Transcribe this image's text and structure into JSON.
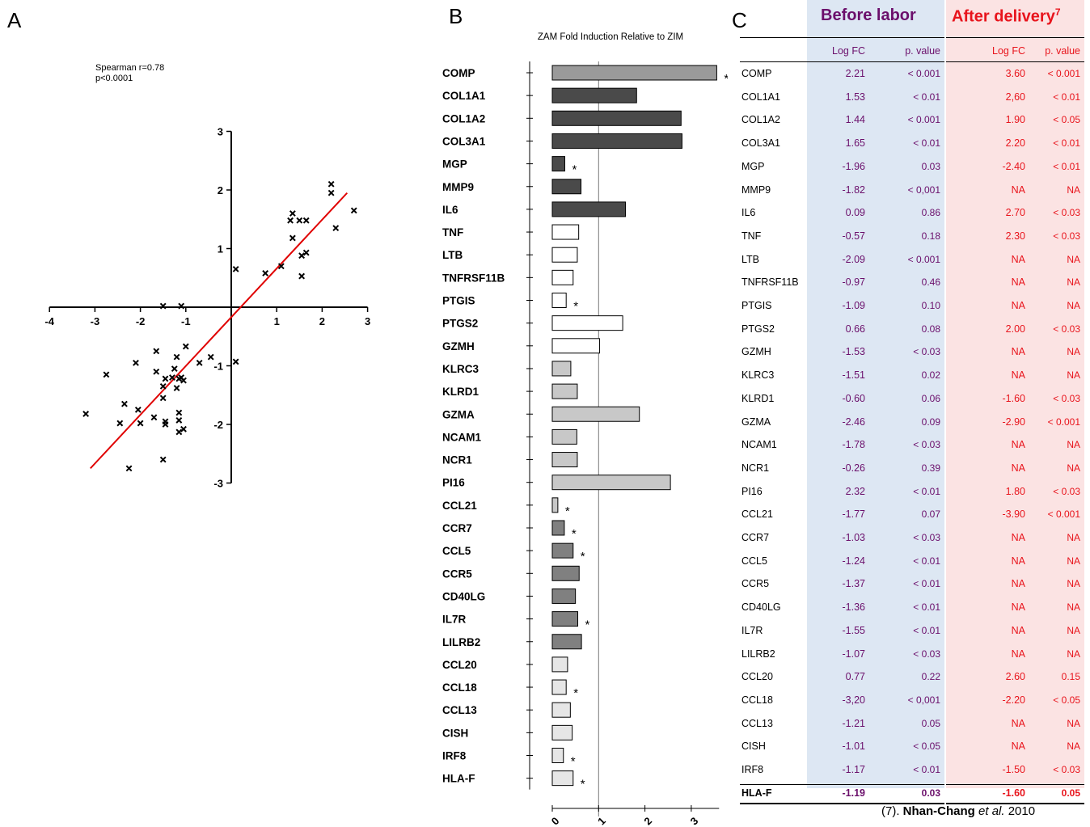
{
  "panels": {
    "a": "A",
    "b": "B",
    "c": "C"
  },
  "colors": {
    "before_text": "#6b0f6b",
    "after_text": "#e8141c",
    "before_band": "#dde7f3",
    "after_band": "#fbe3e3",
    "fit_line": "#e00000",
    "bar_dark": "#4a4a4a",
    "bar_mid": "#808080",
    "bar_light": "#c8c8c8",
    "bar_vlight": "#e6e6e6",
    "bar_white": "#ffffff",
    "bar_top": "#9a9a9a"
  },
  "chart_data": [
    {
      "type": "scatter",
      "annotation": [
        "Spearman r=0.78",
        "p<0.0001"
      ],
      "xlim": [
        -4,
        3
      ],
      "ylim": [
        -3,
        3
      ],
      "xticks": [
        "-4",
        "-3",
        "-2",
        "-1",
        "1",
        "2",
        "3"
      ],
      "yticks": [
        "3",
        "2",
        "1",
        "-1",
        "-2",
        "-3"
      ],
      "marker": "x",
      "points": [
        [
          0.1,
          0.65
        ],
        [
          0.75,
          0.58
        ],
        [
          1.1,
          0.7
        ],
        [
          1.35,
          1.6
        ],
        [
          1.3,
          1.48
        ],
        [
          1.5,
          1.48
        ],
        [
          1.65,
          1.48
        ],
        [
          1.35,
          1.18
        ],
        [
          1.55,
          0.88
        ],
        [
          1.65,
          0.93
        ],
        [
          1.55,
          0.53
        ],
        [
          2.2,
          2.1
        ],
        [
          2.2,
          1.95
        ],
        [
          2.7,
          1.65
        ],
        [
          2.3,
          1.35
        ],
        [
          -1.5,
          0.02
        ],
        [
          -1.1,
          0.02
        ],
        [
          0.1,
          -0.93
        ],
        [
          -0.45,
          -0.85
        ],
        [
          -0.7,
          -0.95
        ],
        [
          -1.0,
          -0.67
        ],
        [
          -1.2,
          -0.85
        ],
        [
          -1.25,
          -1.05
        ],
        [
          -1.65,
          -0.75
        ],
        [
          -1.65,
          -1.1
        ],
        [
          -1.45,
          -1.22
        ],
        [
          -1.1,
          -1.2
        ],
        [
          -1.05,
          -1.25
        ],
        [
          -1.15,
          -1.22
        ],
        [
          -1.3,
          -1.2
        ],
        [
          -1.5,
          -1.35
        ],
        [
          -1.2,
          -1.38
        ],
        [
          -1.5,
          -1.55
        ],
        [
          -2.1,
          -0.95
        ],
        [
          -2.75,
          -1.15
        ],
        [
          -2.35,
          -1.65
        ],
        [
          -2.05,
          -1.75
        ],
        [
          -1.7,
          -1.88
        ],
        [
          -1.45,
          -1.95
        ],
        [
          -1.45,
          -2.0
        ],
        [
          -1.15,
          -1.8
        ],
        [
          -1.15,
          -1.93
        ],
        [
          -2.0,
          -1.98
        ],
        [
          -2.45,
          -1.98
        ],
        [
          -3.2,
          -1.82
        ],
        [
          -1.05,
          -2.08
        ],
        [
          -1.15,
          -2.13
        ],
        [
          -1.5,
          -2.6
        ],
        [
          -2.25,
          -2.75
        ]
      ],
      "fit_line": [
        [
          -3.1,
          -2.75
        ],
        [
          2.55,
          1.95
        ]
      ]
    },
    {
      "type": "bar",
      "orientation": "horizontal",
      "title": "ZAM Fold Induction Relative to ZIM",
      "xticks": [
        "0",
        "1",
        "2",
        "3"
      ],
      "xlim": [
        0,
        3.6
      ],
      "reference_line": 1,
      "categories": [
        "COMP",
        "COL1A1",
        "COL1A2",
        "COL3A1",
        "MGP",
        "MMP9",
        "IL6",
        "TNF",
        "LTB",
        "TNFRSF11B",
        "PTGIS",
        "PTGS2",
        "GZMH",
        "KLRC3",
        "KLRD1",
        "GZMA",
        "NCAM1",
        "NCR1",
        "PI16",
        "CCL21",
        "CCR7",
        "CCL5",
        "CCR5",
        "CD40LG",
        "IL7R",
        "LILRB2",
        "CCL20",
        "CCL18",
        "CCL13",
        "CISH",
        "IRF8",
        "HLA-F"
      ],
      "values": [
        3.55,
        1.82,
        2.78,
        2.8,
        0.27,
        0.62,
        1.58,
        0.57,
        0.54,
        0.45,
        0.3,
        1.52,
        1.02,
        0.4,
        0.54,
        1.88,
        0.53,
        0.54,
        2.55,
        0.12,
        0.26,
        0.45,
        0.58,
        0.5,
        0.55,
        0.63,
        0.33,
        0.3,
        0.39,
        0.43,
        0.24,
        0.45
      ],
      "color_group": [
        "top",
        "dark",
        "dark",
        "dark",
        "dark",
        "dark",
        "dark",
        "white",
        "white",
        "white",
        "white",
        "white",
        "white",
        "light",
        "light",
        "light",
        "light",
        "light",
        "light",
        "light",
        "mid",
        "mid",
        "mid",
        "mid",
        "mid",
        "mid",
        "vlight",
        "vlight",
        "vlight",
        "vlight",
        "vlight",
        "vlight"
      ],
      "significant": [
        true,
        false,
        false,
        false,
        true,
        false,
        false,
        false,
        false,
        false,
        true,
        false,
        false,
        false,
        false,
        false,
        false,
        false,
        false,
        true,
        true,
        true,
        false,
        false,
        true,
        false,
        false,
        true,
        false,
        false,
        true,
        true
      ],
      "star": "*"
    },
    {
      "type": "table",
      "group_headers": [
        "Before labor",
        "After delivery"
      ],
      "after_superscript": "7",
      "columns": [
        "Log FC",
        "p. value",
        "Log FC",
        "p. value"
      ],
      "rows": [
        [
          "COMP",
          "2.21",
          "< 0.001",
          "3.60",
          "< 0.001"
        ],
        [
          "COL1A1",
          "1.53",
          "< 0.01",
          "2,60",
          "< 0.01"
        ],
        [
          "COL1A2",
          "1.44",
          "< 0.001",
          "1.90",
          "< 0.05"
        ],
        [
          "COL3A1",
          "1.65",
          "< 0.01",
          "2.20",
          "< 0.01"
        ],
        [
          "MGP",
          "-1.96",
          "0.03",
          "-2.40",
          "< 0.01"
        ],
        [
          "MMP9",
          "-1.82",
          "< 0,001",
          "NA",
          "NA"
        ],
        [
          "IL6",
          "0.09",
          "0.86",
          "2.70",
          "< 0.03"
        ],
        [
          "TNF",
          "-0.57",
          "0.18",
          "2.30",
          "< 0.03"
        ],
        [
          "LTB",
          "-2.09",
          "< 0.001",
          "NA",
          "NA"
        ],
        [
          "TNFRSF11B",
          "-0.97",
          "0.46",
          "NA",
          "NA"
        ],
        [
          "PTGIS",
          "-1.09",
          "0.10",
          "NA",
          "NA"
        ],
        [
          "PTGS2",
          "0.66",
          "0.08",
          "2.00",
          "< 0.03"
        ],
        [
          "GZMH",
          "-1.53",
          "< 0.03",
          "NA",
          "NA"
        ],
        [
          "KLRC3",
          "-1.51",
          "0.02",
          "NA",
          "NA"
        ],
        [
          "KLRD1",
          "-0.60",
          "0.06",
          "-1.60",
          "< 0.03"
        ],
        [
          "GZMA",
          "-2.46",
          "0.09",
          "-2.90",
          "< 0.001"
        ],
        [
          "NCAM1",
          "-1.78",
          "< 0.03",
          "NA",
          "NA"
        ],
        [
          "NCR1",
          "-0.26",
          "0.39",
          "NA",
          "NA"
        ],
        [
          "PI16",
          "2.32",
          "< 0.01",
          "1.80",
          "< 0.03"
        ],
        [
          "CCL21",
          "-1.77",
          "0.07",
          "-3.90",
          "< 0.001"
        ],
        [
          "CCR7",
          "-1.03",
          "< 0.03",
          "NA",
          "NA"
        ],
        [
          "CCL5",
          "-1.24",
          "< 0.01",
          "NA",
          "NA"
        ],
        [
          "CCR5",
          "-1.37",
          "< 0.01",
          "NA",
          "NA"
        ],
        [
          "CD40LG",
          "-1.36",
          "< 0.01",
          "NA",
          "NA"
        ],
        [
          "IL7R",
          "-1.55",
          "< 0.01",
          "NA",
          "NA"
        ],
        [
          "LILRB2",
          "-1.07",
          "< 0.03",
          "NA",
          "NA"
        ],
        [
          "CCL20",
          "0.77",
          "0.22",
          "2.60",
          "0.15"
        ],
        [
          "CCL18",
          "-3,20",
          "< 0,001",
          "-2.20",
          "< 0.05"
        ],
        [
          "CCL13",
          "-1.21",
          "0.05",
          "NA",
          "NA"
        ],
        [
          "CISH",
          "-1.01",
          "< 0.05",
          "NA",
          "NA"
        ],
        [
          "IRF8",
          "-1.17",
          "< 0.01",
          "-1.50",
          "< 0.03"
        ],
        [
          "HLA-F",
          "-1.19",
          "0.03",
          "-1.60",
          "0.05"
        ]
      ],
      "bold_last_row": true
    }
  ],
  "footer": {
    "prefix": "(7). ",
    "authors": "Nhan-Chang",
    "etal": "et al.",
    "year": " 2010"
  }
}
